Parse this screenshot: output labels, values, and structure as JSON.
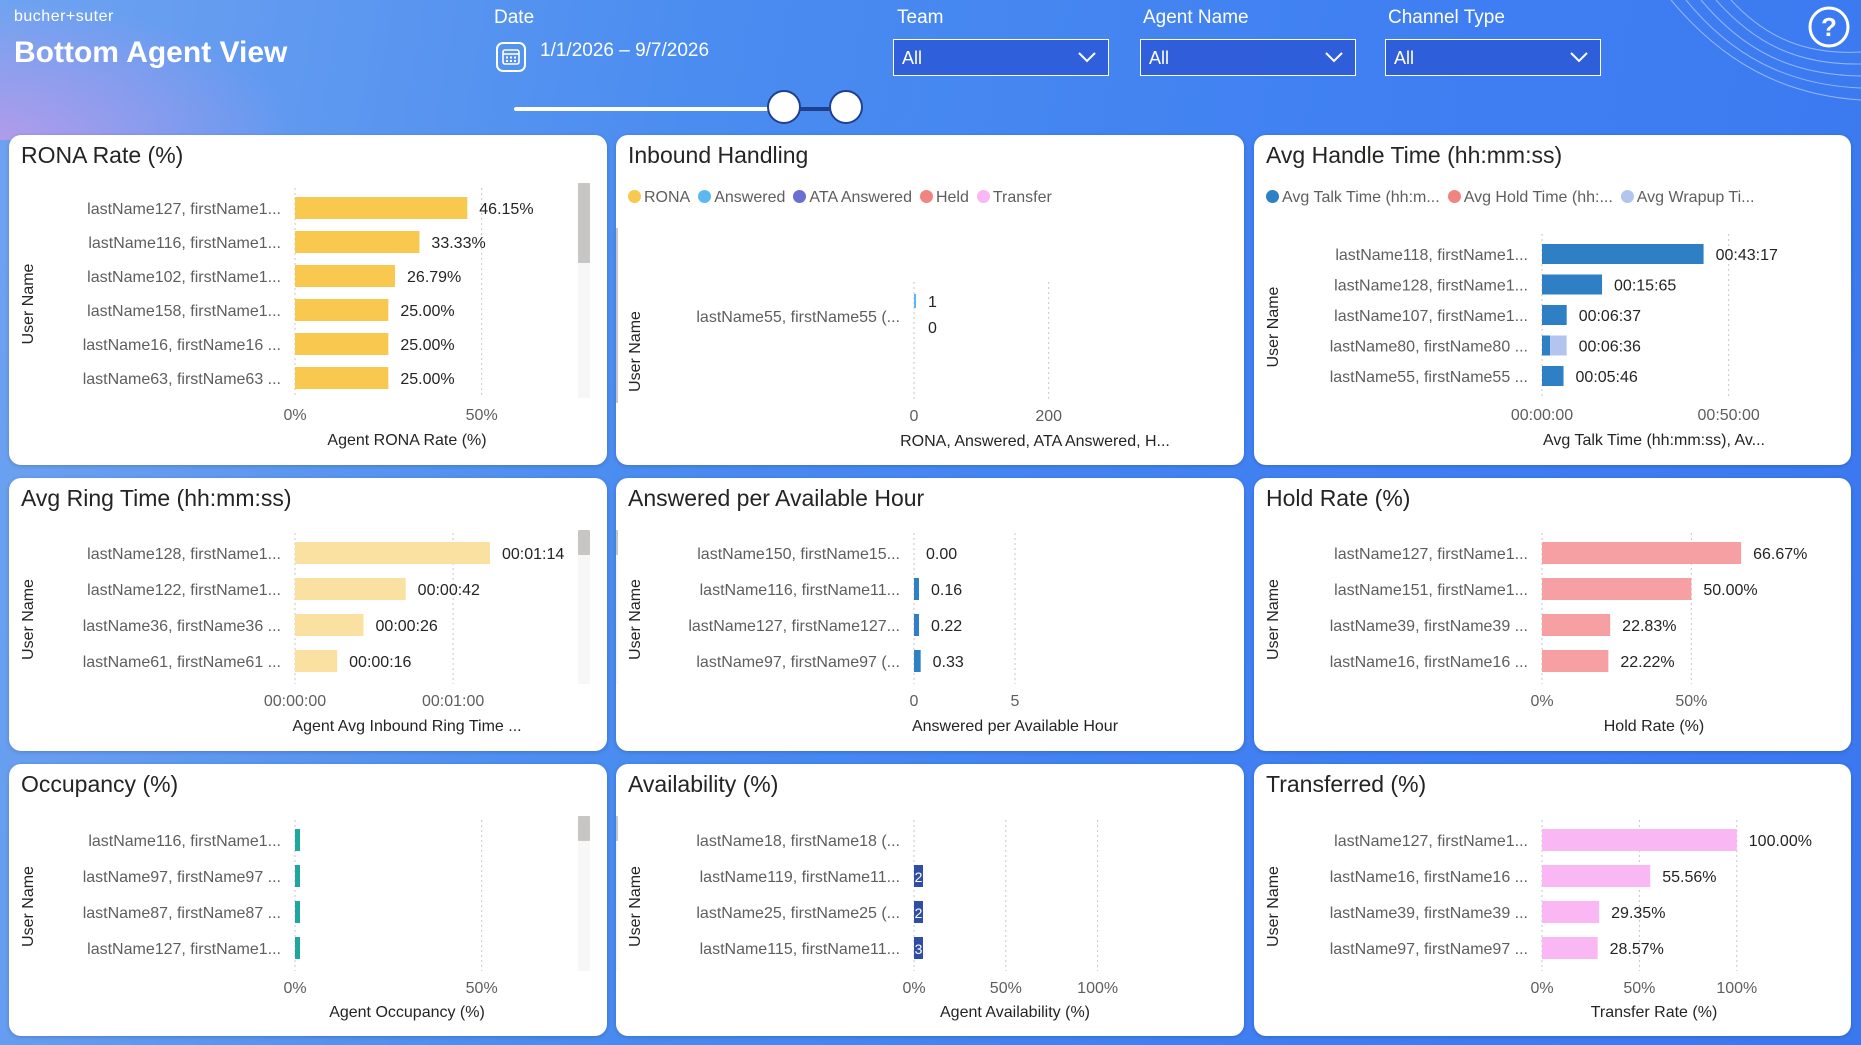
{
  "header": {
    "logo": "bucher+suter",
    "title": "Bottom Agent View",
    "date": {
      "label": "Date",
      "range": "1/1/2026 – 9/7/2026"
    },
    "filters": [
      {
        "label": "Team",
        "value": "All"
      },
      {
        "label": "Agent Name",
        "value": "All"
      },
      {
        "label": "Channel Type",
        "value": "All"
      }
    ]
  },
  "icons": [
    "calendar-icon",
    "chevron-down-icon",
    "help-icon"
  ],
  "colors": {
    "rona": "#f9c84f",
    "ring": "#fbe1a1",
    "hold": "#f7a0a3",
    "transfer": "#f9b7f3",
    "talk": "#2f7fc4",
    "wrapup": "#b3c4ef",
    "occupancy": "#20a6a0",
    "availability": "#2f4da6",
    "answered": "#5bb8f0"
  },
  "panels": [
    {
      "id": "rona",
      "title": "RONA Rate (%)",
      "ylabel": "User Name",
      "xlabel": "Agent RONA Rate (%)",
      "xmax": 60,
      "ticks": [
        {
          "v": 0,
          "label": "0%"
        },
        {
          "v": 50,
          "label": "50%"
        }
      ],
      "color": "rona",
      "rows": [
        {
          "name": "lastName127, firstName1...",
          "value": 46.15,
          "label": "46.15%"
        },
        {
          "name": "lastName116, firstName1...",
          "value": 33.33,
          "label": "33.33%"
        },
        {
          "name": "lastName102, firstName1...",
          "value": 26.79,
          "label": "26.79%"
        },
        {
          "name": "lastName158, firstName1...",
          "value": 25.0,
          "label": "25.00%"
        },
        {
          "name": "lastName16, firstName16 ...",
          "value": 25.0,
          "label": "25.00%"
        },
        {
          "name": "lastName63, firstName63 ...",
          "value": 25.0,
          "label": "25.00%"
        }
      ]
    },
    {
      "id": "inbound",
      "title": "Inbound Handling",
      "ylabel": "User Name",
      "xlabel": "RONA, Answered, ATA Answered, H...",
      "legend": [
        {
          "label": "RONA",
          "color": "#f9c84f"
        },
        {
          "label": "Answered",
          "color": "#5bb8f0"
        },
        {
          "label": "ATA Answered",
          "color": "#6a6fd1"
        },
        {
          "label": "Held",
          "color": "#f2847f"
        },
        {
          "label": "Transfer",
          "color": "#f9b7f3"
        }
      ],
      "xmax": 300,
      "ticks": [
        {
          "v": 0,
          "label": "0"
        },
        {
          "v": 200,
          "label": "200"
        }
      ],
      "name": "lastName55, firstName55 (...",
      "series": [
        {
          "name": "Answered",
          "value": 1,
          "label": "1",
          "color": "#5bb8f0"
        },
        {
          "name": "Held",
          "value": 0,
          "label": "0",
          "color": "#f2847f"
        }
      ]
    },
    {
      "id": "aht",
      "title": "Avg Handle Time (hh:mm:ss)",
      "ylabel": "User Name",
      "xlabel": "Avg Talk Time (hh:mm:ss), Av...",
      "legend": [
        {
          "label": "Avg Talk Time (hh:m...",
          "color": "#2f7fc4"
        },
        {
          "label": "Avg Hold Time (hh:...",
          "color": "#f2847f"
        },
        {
          "label": "Avg Wrapup Ti...",
          "color": "#b3c4ef"
        }
      ],
      "xmax": 3600,
      "ticks": [
        {
          "v": 0,
          "label": "00:00:00"
        },
        {
          "v": 3000,
          "label": "00:50:00"
        }
      ],
      "rows": [
        {
          "name": "lastName118, firstName1...",
          "talk": 2597,
          "wrapup": 0,
          "label": "00:43:17"
        },
        {
          "name": "lastName128, firstName1...",
          "talk": 965,
          "wrapup": 0,
          "label": "00:15:65"
        },
        {
          "name": "lastName107, firstName1...",
          "talk": 397,
          "wrapup": 0,
          "label": "00:06:37"
        },
        {
          "name": "lastName80, firstName80 ...",
          "talk": 130,
          "wrapup": 266,
          "label": "00:06:36"
        },
        {
          "name": "lastName55, firstName55 ...",
          "talk": 346,
          "wrapup": 0,
          "label": "00:05:46"
        }
      ]
    },
    {
      "id": "ring",
      "title": "Avg Ring Time (hh:mm:ss)",
      "ylabel": "User Name",
      "xlabel": "Agent Avg Inbound Ring Time ...",
      "xmax": 85,
      "ticks": [
        {
          "v": 0,
          "label": "00:00:00"
        },
        {
          "v": 60,
          "label": "00:01:00"
        }
      ],
      "color": "ring",
      "rows": [
        {
          "name": "lastName128, firstName1...",
          "value": 74,
          "label": "00:01:14"
        },
        {
          "name": "lastName122, firstName1...",
          "value": 42,
          "label": "00:00:42"
        },
        {
          "name": "lastName36, firstName36 ...",
          "value": 26,
          "label": "00:00:26"
        },
        {
          "name": "lastName61, firstName61 ...",
          "value": 16,
          "label": "00:00:16"
        }
      ]
    },
    {
      "id": "aph",
      "title": "Answered per Available Hour",
      "ylabel": "User Name",
      "xlabel": "Answered per Available Hour",
      "xmax": 10,
      "ticks": [
        {
          "v": 0,
          "label": "0"
        },
        {
          "v": 5,
          "label": "5"
        }
      ],
      "color": "talk",
      "rows": [
        {
          "name": "lastName150, firstName15...",
          "value": 0.0,
          "label": "0.00"
        },
        {
          "name": "lastName116, firstName11...",
          "value": 0.16,
          "label": "0.16"
        },
        {
          "name": "lastName127, firstName127...",
          "value": 0.22,
          "label": "0.22"
        },
        {
          "name": "lastName97, firstName97 (...",
          "value": 0.33,
          "label": "0.33"
        }
      ]
    },
    {
      "id": "hold",
      "title": "Hold Rate (%)",
      "ylabel": "User Name",
      "xlabel": "Hold Rate (%)",
      "xmax": 75,
      "ticks": [
        {
          "v": 0,
          "label": "0%"
        },
        {
          "v": 50,
          "label": "50%"
        }
      ],
      "color": "hold",
      "rows": [
        {
          "name": "lastName127, firstName1...",
          "value": 66.67,
          "label": "66.67%"
        },
        {
          "name": "lastName151, firstName1...",
          "value": 50.0,
          "label": "50.00%"
        },
        {
          "name": "lastName39, firstName39 ...",
          "value": 22.83,
          "label": "22.83%"
        },
        {
          "name": "lastName16, firstName16 ...",
          "value": 22.22,
          "label": "22.22%"
        }
      ]
    },
    {
      "id": "occupancy",
      "title": "Occupancy (%)",
      "ylabel": "User Name",
      "xlabel": "Agent Occupancy (%)",
      "xmax": 60,
      "ticks": [
        {
          "v": 0,
          "label": "0%"
        },
        {
          "v": 50,
          "label": "50%"
        }
      ],
      "color": "occupancy",
      "rows": [
        {
          "name": "lastName116, firstName1...",
          "value": 0.5,
          "label": ""
        },
        {
          "name": "lastName97, firstName97 ...",
          "value": 0.6,
          "label": ""
        },
        {
          "name": "lastName87, firstName87 ...",
          "value": 0.7,
          "label": ""
        },
        {
          "name": "lastName127, firstName1...",
          "value": 0.9,
          "label": ""
        }
      ]
    },
    {
      "id": "availability",
      "title": "Availability (%)",
      "ylabel": "User Name",
      "xlabel": "Agent Availability (%)",
      "xmax": 110,
      "ticks": [
        {
          "v": 0,
          "label": "0%"
        },
        {
          "v": 50,
          "label": "50%"
        },
        {
          "v": 100,
          "label": "100%"
        }
      ],
      "color": "availability",
      "rows": [
        {
          "name": "lastName18, firstName18 (...",
          "value": 0,
          "label": ""
        },
        {
          "name": "lastName119, firstName11...",
          "value": 2,
          "label": "2"
        },
        {
          "name": "lastName25, firstName25 (...",
          "value": 2,
          "label": "2"
        },
        {
          "name": "lastName115, firstName11...",
          "value": 3,
          "label": "3"
        }
      ]
    },
    {
      "id": "transfer",
      "title": "Transferred (%)",
      "ylabel": "User Name",
      "xlabel": "Transfer Rate (%)",
      "xmax": 115,
      "ticks": [
        {
          "v": 0,
          "label": "0%"
        },
        {
          "v": 50,
          "label": "50%"
        },
        {
          "v": 100,
          "label": "100%"
        }
      ],
      "color": "transfer",
      "rows": [
        {
          "name": "lastName127, firstName1...",
          "value": 100.0,
          "label": "100.00%"
        },
        {
          "name": "lastName16, firstName16 ...",
          "value": 55.56,
          "label": "55.56%"
        },
        {
          "name": "lastName39, firstName39 ...",
          "value": 29.35,
          "label": "29.35%"
        },
        {
          "name": "lastName97, firstName97 ...",
          "value": 28.57,
          "label": "28.57%"
        }
      ]
    }
  ]
}
